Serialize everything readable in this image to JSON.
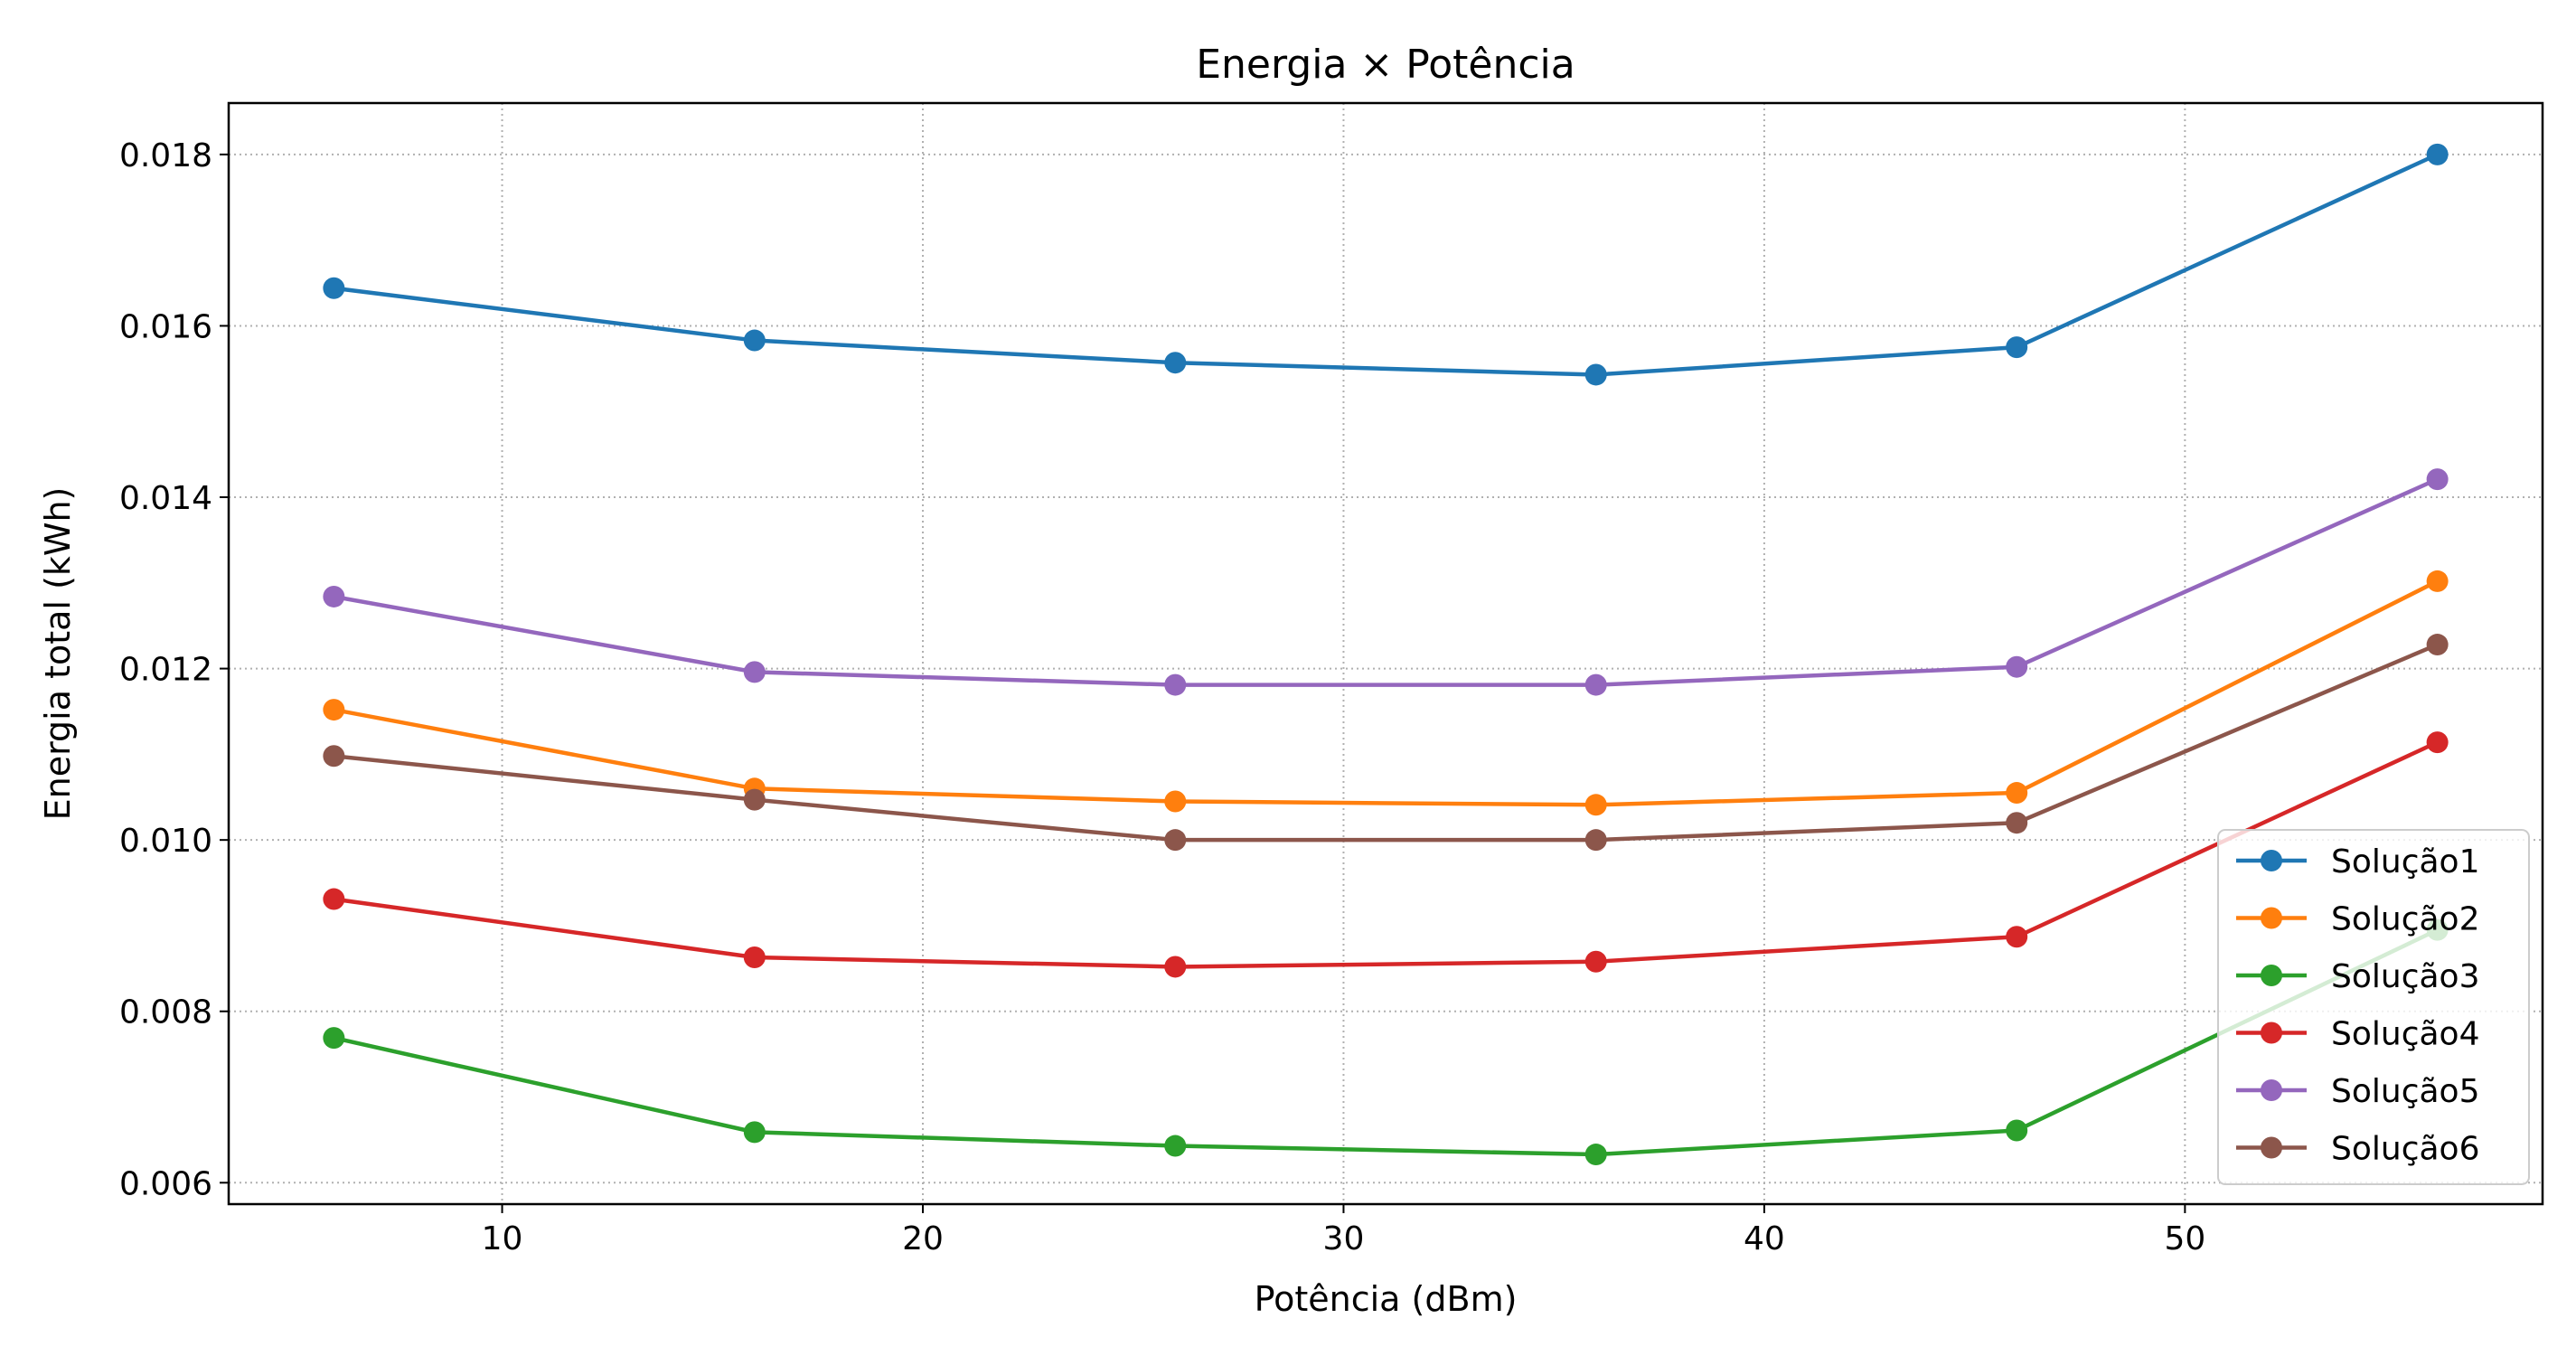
{
  "chart_data": {
    "type": "line",
    "title": "Energia × Potência",
    "xlabel": "Potência (dBm)",
    "ylabel": "Energia total (kWh)",
    "x": [
      6,
      16,
      26,
      36,
      46,
      56
    ],
    "xlim": [
      3.5,
      58.5
    ],
    "ylim": [
      0.00575,
      0.0186
    ],
    "xticks": [
      10,
      20,
      30,
      40,
      50
    ],
    "xtick_labels": [
      "10",
      "20",
      "30",
      "40",
      "50"
    ],
    "yticks": [
      0.006,
      0.008,
      0.01,
      0.012,
      0.014,
      0.016,
      0.018
    ],
    "ytick_labels": [
      "0.006",
      "0.008",
      "0.010",
      "0.012",
      "0.014",
      "0.016",
      "0.018"
    ],
    "grid": true,
    "legend_position": "lower right",
    "series": [
      {
        "name": "Solução1",
        "color": "#1f77b4",
        "values": [
          0.01644,
          0.01583,
          0.01557,
          0.01543,
          0.01575,
          0.018
        ]
      },
      {
        "name": "Solução2",
        "color": "#ff7f0e",
        "values": [
          0.01152,
          0.0106,
          0.01045,
          0.01041,
          0.01055,
          0.01302
        ]
      },
      {
        "name": "Solução3",
        "color": "#2ca02c",
        "values": [
          0.00769,
          0.00659,
          0.00643,
          0.00633,
          0.00661,
          0.00895
        ]
      },
      {
        "name": "Solução4",
        "color": "#d62728",
        "values": [
          0.00931,
          0.00863,
          0.00852,
          0.00858,
          0.00887,
          0.01114
        ]
      },
      {
        "name": "Solução5",
        "color": "#9467bd",
        "values": [
          0.01284,
          0.01196,
          0.01181,
          0.01181,
          0.01202,
          0.01421
        ]
      },
      {
        "name": "Solução6",
        "color": "#8c564b",
        "values": [
          0.01098,
          0.01047,
          0.01,
          0.01,
          0.0102,
          0.01228
        ]
      }
    ]
  }
}
